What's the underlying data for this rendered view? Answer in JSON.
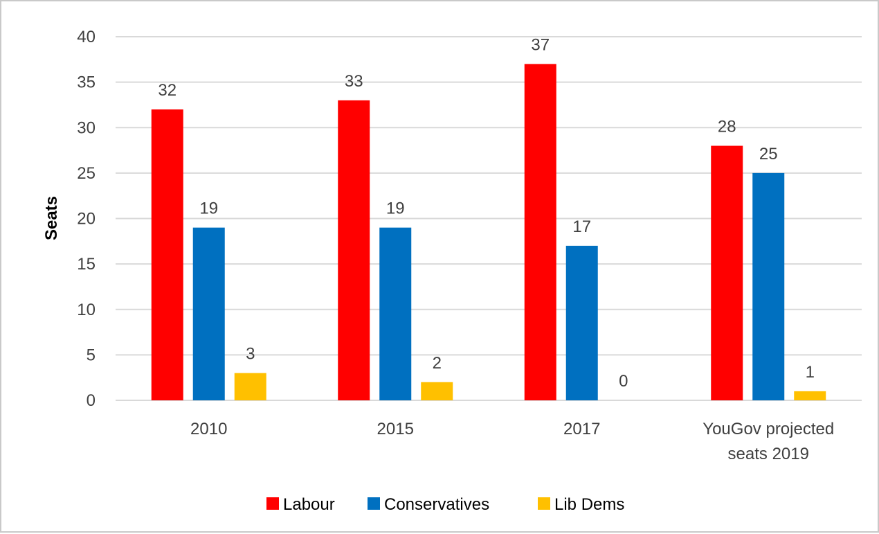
{
  "chart_data": {
    "type": "bar",
    "title": "",
    "xlabel": "",
    "ylabel": "Seats",
    "ylim": [
      0,
      40
    ],
    "yticks": [
      0,
      5,
      10,
      15,
      20,
      25,
      30,
      35,
      40
    ],
    "grid": true,
    "legend_position": "bottom",
    "categories": [
      [
        "2010"
      ],
      [
        "2015"
      ],
      [
        "2017"
      ],
      [
        "YouGov projected",
        "seats 2019"
      ]
    ],
    "series": [
      {
        "name": "Labour",
        "color": "#ff0000",
        "values": [
          32,
          33,
          37,
          28
        ]
      },
      {
        "name": "Conservatives",
        "color": "#0070c0",
        "values": [
          19,
          19,
          17,
          25
        ]
      },
      {
        "name": "Lib Dems",
        "color": "#ffc000",
        "values": [
          3,
          2,
          0,
          1
        ]
      }
    ]
  }
}
